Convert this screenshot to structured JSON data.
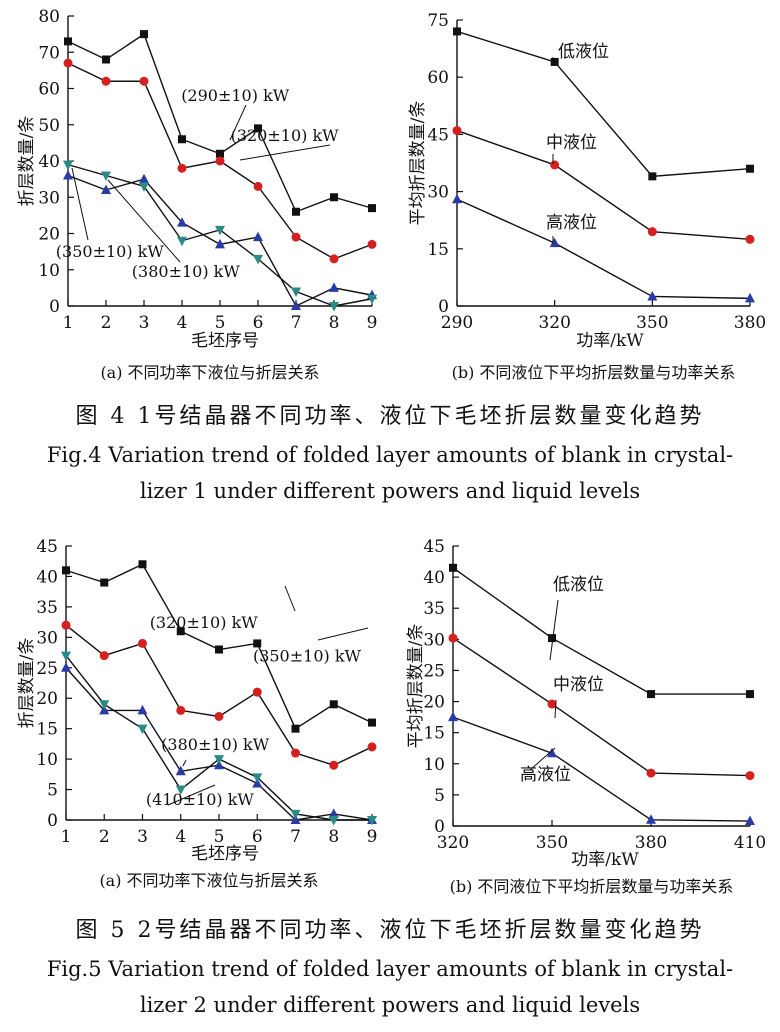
{
  "chart_data": [
    {
      "type": "line",
      "panel": "fig4a",
      "caption": "(a) 不同功率下液位与折层关系",
      "xlabel": "毛坯序号",
      "ylabel": "折层数量/条",
      "x": [
        1,
        2,
        3,
        4,
        5,
        6,
        7,
        8,
        9
      ],
      "ylim": [
        0,
        80
      ],
      "yticks": [
        0,
        10,
        20,
        30,
        40,
        50,
        60,
        70,
        80
      ],
      "series": [
        {
          "name": "",
          "color": "#111111",
          "marker": "square",
          "values": [
            73,
            68,
            75,
            46,
            42,
            49,
            26,
            30,
            27
          ]
        },
        {
          "name": "",
          "color": "#d62020",
          "marker": "circle",
          "values": [
            67,
            62,
            62,
            38,
            40,
            33,
            19,
            13,
            17
          ]
        },
        {
          "name": "",
          "color": "#2a3aa8",
          "marker": "triangle-up",
          "values": [
            36,
            32,
            35,
            23,
            17,
            19,
            0,
            5,
            3
          ]
        },
        {
          "name": "",
          "color": "#2a8a86",
          "marker": "triangle-down",
          "values": [
            39,
            36,
            33,
            18,
            21,
            13,
            4,
            0,
            2
          ]
        }
      ],
      "annotations": [
        {
          "text": "(290±10) kW",
          "data_x": 5.4,
          "data_y": 56.5
        },
        {
          "text": "(320±10) kW",
          "data_x": 6.7,
          "data_y": 45.5
        },
        {
          "text": "(350±10) kW",
          "data_x": 2.1,
          "data_y": 13.5
        },
        {
          "text": "(380±10) kW",
          "data_x": 4.1,
          "data_y": 8
        }
      ]
    },
    {
      "type": "line",
      "panel": "fig4b",
      "caption": "(b) 不同液位下平均折层数量与功率关系",
      "xlabel": "功率/kW",
      "ylabel": "平均折层数量/条",
      "x": [
        290,
        320,
        350,
        380
      ],
      "ylim": [
        0,
        75
      ],
      "yticks": [
        0,
        15,
        30,
        45,
        60,
        75
      ],
      "series": [
        {
          "name": "低液位",
          "color": "#111111",
          "marker": "square",
          "values": [
            72,
            64,
            34,
            36
          ]
        },
        {
          "name": "中液位",
          "color": "#d62020",
          "marker": "circle",
          "values": [
            46,
            37,
            19.5,
            17.5
          ]
        },
        {
          "name": "高液位",
          "color": "#2a3aa8",
          "marker": "triangle-up",
          "values": [
            28,
            16.5,
            2.5,
            2
          ]
        }
      ]
    },
    {
      "type": "line",
      "panel": "fig5a",
      "caption": "(a) 不同功率下液位与折层关系",
      "xlabel": "毛坯序号",
      "ylabel": "折层数量/条",
      "x": [
        1,
        2,
        3,
        4,
        5,
        6,
        7,
        8,
        9
      ],
      "ylim": [
        0,
        45
      ],
      "yticks": [
        0,
        5,
        10,
        15,
        20,
        25,
        30,
        35,
        40,
        45
      ],
      "series": [
        {
          "name": "",
          "color": "#111111",
          "marker": "square",
          "values": [
            41,
            39,
            42,
            31,
            28,
            29,
            15,
            19,
            16
          ]
        },
        {
          "name": "",
          "color": "#d62020",
          "marker": "circle",
          "values": [
            32,
            27,
            29,
            18,
            17,
            21,
            11,
            9,
            12
          ]
        },
        {
          "name": "",
          "color": "#2a3aa8",
          "marker": "triangle-up",
          "values": [
            25,
            18,
            18,
            8,
            9,
            6,
            0,
            1,
            0
          ]
        },
        {
          "name": "",
          "color": "#2a8a86",
          "marker": "triangle-down",
          "values": [
            27,
            19,
            15,
            5,
            10,
            7,
            1,
            0,
            0
          ]
        }
      ],
      "annotations": [
        {
          "text": "(320±10)  kW",
          "data_x": 4.6,
          "data_y": 31.5
        },
        {
          "text": "(350±10)  kW",
          "data_x": 7.3,
          "data_y": 26
        },
        {
          "text": "(380±10)  kW",
          "data_x": 4.9,
          "data_y": 11.5
        },
        {
          "text": "(410±10)  kW",
          "data_x": 4.5,
          "data_y": 2.5
        }
      ]
    },
    {
      "type": "line",
      "panel": "fig5b",
      "caption": "(b) 不同液位下平均折层数量与功率关系",
      "xlabel": "功率/kW",
      "ylabel": "平均折层数量/条",
      "x": [
        320,
        350,
        380,
        410
      ],
      "ylim": [
        0,
        45
      ],
      "yticks": [
        0,
        5,
        10,
        15,
        20,
        25,
        30,
        35,
        40,
        45
      ],
      "series": [
        {
          "name": "低液位",
          "color": "#111111",
          "marker": "square",
          "values": [
            41.5,
            30.2,
            21.2,
            21.2
          ]
        },
        {
          "name": "中液位",
          "color": "#d62020",
          "marker": "circle",
          "values": [
            30.2,
            19.6,
            8.5,
            8.1
          ]
        },
        {
          "name": "高液位",
          "color": "#2a3aa8",
          "marker": "triangle-up",
          "values": [
            17.5,
            11.7,
            1,
            0.8
          ]
        }
      ]
    }
  ],
  "figures": {
    "fig4": {
      "title_zh": "图 4   1号结晶器不同功率、液位下毛坯折层数量变化趋势",
      "title_en_1": "Fig.4    Variation trend of folded layer amounts of blank in crystal-",
      "title_en_2": "lizer 1 under different powers and liquid levels"
    },
    "fig5": {
      "title_zh": "图 5   2号结晶器不同功率、液位下毛坯折层数量变化趋势",
      "title_en_1": "Fig.5    Variation trend of folded layer amounts of blank in crystal-",
      "title_en_2": "lizer 2 under different powers and liquid levels"
    }
  }
}
